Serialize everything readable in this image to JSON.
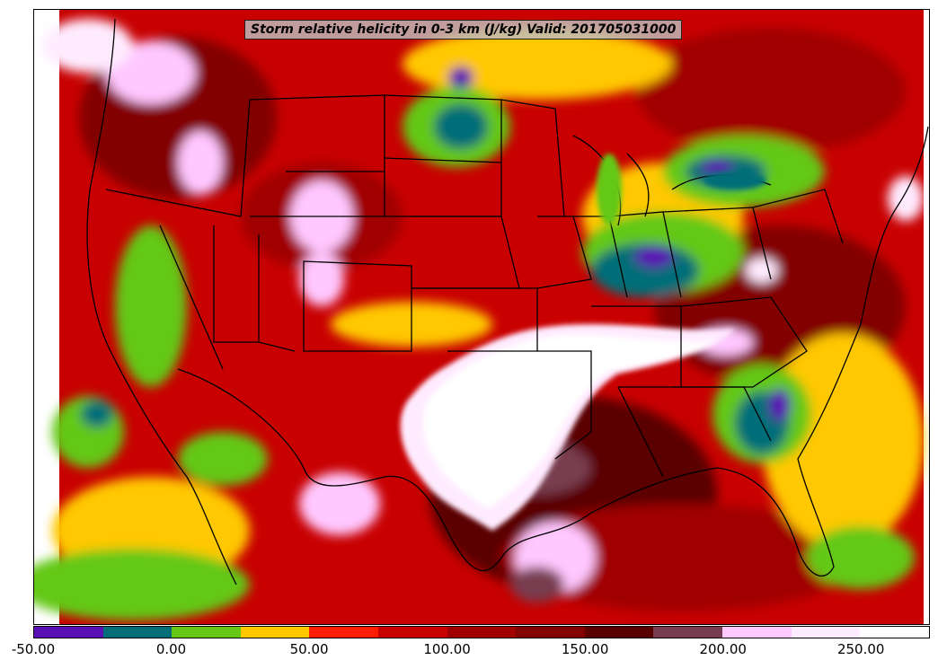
{
  "title": "Storm relative helicity in 0-3 km (J/kg) Valid: 201705031000",
  "colorbar": {
    "min": -50,
    "max": 275,
    "step": 25,
    "colors": [
      "#5a0fb4",
      "#006e78",
      "#64c814",
      "#ffc800",
      "#ff1e00",
      "#c80000",
      "#a00000",
      "#820000",
      "#5a0000",
      "#783c50",
      "#ffc8ff",
      "#ffebff",
      "#ffffff"
    ],
    "tick_labels": [
      "-50.00",
      "0.00",
      "50.00",
      "100.00",
      "150.00",
      "200.00",
      "250.00"
    ]
  },
  "map": {
    "region": "Continental United States",
    "background_color": "#c80000"
  }
}
